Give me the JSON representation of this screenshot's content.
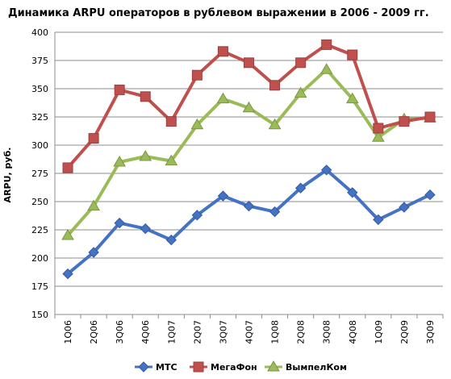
{
  "chart_data": {
    "type": "line",
    "title": "Динамика ARPU операторов в рублевом выражении в 2006 - 2009 гг.",
    "ylabel": "ARPU, руб.",
    "xlabel": "",
    "ylim": [
      150,
      400
    ],
    "yticks": [
      150,
      175,
      200,
      225,
      250,
      275,
      300,
      325,
      350,
      375,
      400
    ],
    "grid": true,
    "legend": "bottom",
    "categories": [
      "1Q06",
      "2Q06",
      "3Q06",
      "4Q06",
      "1Q07",
      "2Q07",
      "3Q07",
      "4Q07",
      "1Q08",
      "2Q08",
      "3Q08",
      "4Q08",
      "1Q09",
      "2Q09",
      "3Q09"
    ],
    "series": [
      {
        "name": "МТС",
        "color": "#4472C4",
        "marker": "diamond",
        "values": [
          186,
          205,
          231,
          226,
          216,
          238,
          255,
          246,
          241,
          262,
          278,
          258,
          234,
          245,
          256
        ]
      },
      {
        "name": "МегаФон",
        "color": "#C0504D",
        "marker": "square",
        "values": [
          280,
          306,
          349,
          343,
          321,
          362,
          383,
          373,
          353,
          373,
          389,
          380,
          315,
          321,
          325
        ]
      },
      {
        "name": "ВымпелКом",
        "color": "#9BBB59",
        "marker": "triangle",
        "values": [
          220,
          246,
          285,
          290,
          286,
          318,
          341,
          333,
          318,
          346,
          367,
          341,
          307,
          323,
          324
        ]
      }
    ]
  }
}
